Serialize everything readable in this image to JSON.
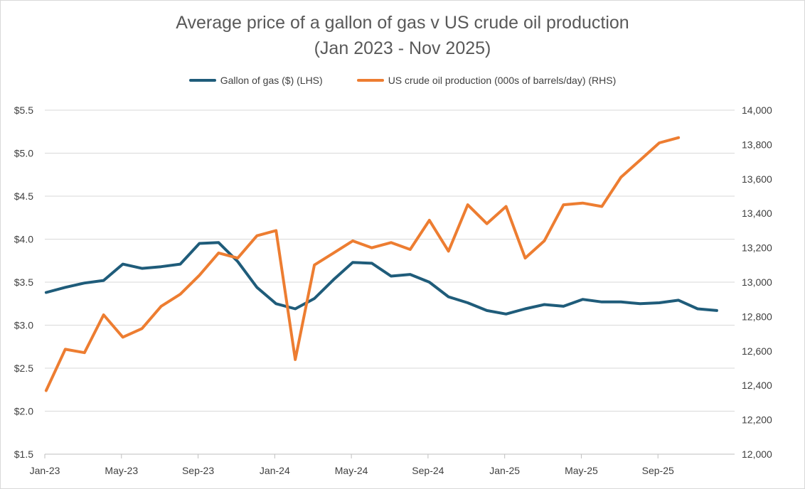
{
  "chart_data": {
    "type": "line",
    "title": "Average price of a gallon of gas v US crude oil production",
    "subtitle": "(Jan 2023 - Nov 2025)",
    "x_tick_labels": [
      "Jan-23",
      "May-23",
      "Sep-23",
      "Jan-24",
      "May-24",
      "Sep-24",
      "Jan-25",
      "May-25",
      "Sep-25"
    ],
    "x_tick_month_index": [
      0,
      4,
      8,
      12,
      16,
      20,
      24,
      28,
      32
    ],
    "y_left": {
      "ticks": [
        1.5,
        2.0,
        2.5,
        3.0,
        3.5,
        4.0,
        4.5,
        5.0,
        5.5
      ],
      "tick_labels": [
        "$1.5",
        "$2.0",
        "$2.5",
        "$3.0",
        "$3.5",
        "$4.0",
        "$4.5",
        "$5.0",
        "$5.5"
      ],
      "lim": [
        1.5,
        5.5
      ]
    },
    "y_right": {
      "ticks": [
        12000,
        12200,
        12400,
        12600,
        12800,
        13000,
        13200,
        13400,
        13600,
        13800,
        14000
      ],
      "tick_labels": [
        "12,000",
        "12,200",
        "12,400",
        "12,600",
        "12,800",
        "13,000",
        "13,200",
        "13,400",
        "13,600",
        "13,800",
        "14,000"
      ],
      "lim": [
        12000,
        14000
      ]
    },
    "grid": true,
    "legend_position": "top",
    "series": [
      {
        "name": "Gallon of gas ($) (LHS)",
        "axis": "left",
        "color": "#1f5c7a",
        "values": [
          3.38,
          3.44,
          3.49,
          3.52,
          3.71,
          3.66,
          3.68,
          3.71,
          3.95,
          3.96,
          3.74,
          3.44,
          3.25,
          3.19,
          3.31,
          3.53,
          3.73,
          3.72,
          3.57,
          3.59,
          3.5,
          3.33,
          3.26,
          3.17,
          3.13,
          3.19,
          3.24,
          3.22,
          3.3,
          3.27,
          3.27,
          3.25,
          3.26,
          3.29,
          3.19,
          3.17
        ]
      },
      {
        "name": "US crude oil production (000s of barrels/day) (RHS)",
        "axis": "right",
        "color": "#ed7d31",
        "values": [
          12370,
          12610,
          12590,
          12810,
          12680,
          12730,
          12860,
          12930,
          13040,
          13170,
          13140,
          13270,
          13300,
          12550,
          13100,
          13170,
          13240,
          13200,
          13230,
          13190,
          13360,
          13180,
          13450,
          13340,
          13440,
          13140,
          13240,
          13450,
          13460,
          13440,
          13610,
          13710,
          13810,
          13840
        ]
      }
    ]
  }
}
